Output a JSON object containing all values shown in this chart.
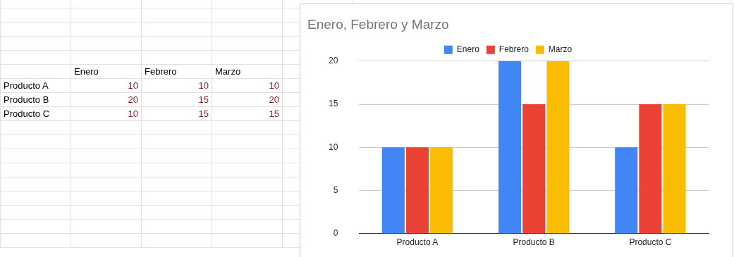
{
  "chart_data": {
    "type": "bar",
    "title": "Enero, Febrero y Marzo",
    "categories": [
      "Producto A",
      "Producto B",
      "Producto C"
    ],
    "series": [
      {
        "name": "Enero",
        "color": "#4285f4",
        "values": [
          10,
          20,
          10
        ]
      },
      {
        "name": "Febrero",
        "color": "#ea4335",
        "values": [
          10,
          15,
          15
        ]
      },
      {
        "name": "Marzo",
        "color": "#fbbc04",
        "values": [
          10,
          20,
          15
        ]
      }
    ],
    "ylim": [
      0,
      20
    ],
    "yticks": [
      0,
      5,
      10,
      15,
      20
    ],
    "grid": "y",
    "legend": "top",
    "annotations": [
      "10",
      "10",
      "10",
      "20",
      "15",
      "20",
      "10",
      "15",
      "15"
    ]
  }
}
